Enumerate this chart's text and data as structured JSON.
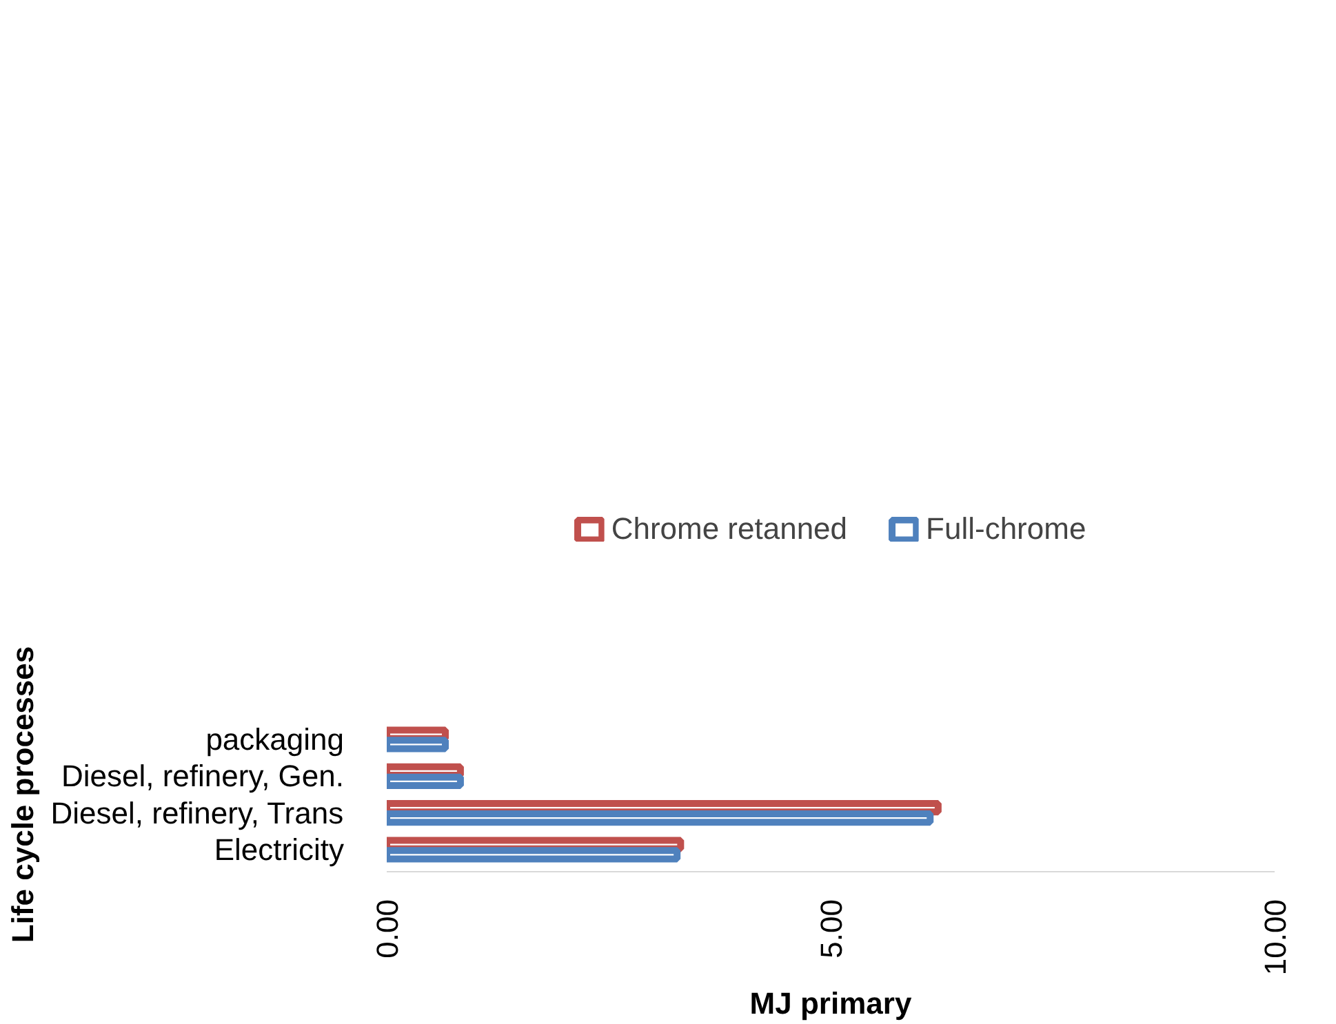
{
  "chart_data": {
    "type": "bar",
    "orientation": "horizontal",
    "xlabel": "MJ primary",
    "ylabel": "Life cycle processes",
    "categories": [
      "packaging",
      "Diesel, refinery, Gen.",
      "Diesel, refinery, Trans",
      "Electricity"
    ],
    "series": [
      {
        "name": "Chrome retanned",
        "color": "#c0504d",
        "values": [
          0.66,
          0.83,
          6.21,
          3.31
        ]
      },
      {
        "name": "Full-chrome",
        "color": "#4f81bd",
        "values": [
          0.66,
          0.83,
          6.12,
          3.27
        ]
      }
    ],
    "xlim": [
      0,
      10
    ],
    "xticks": [
      {
        "value": 0,
        "label": "0.00"
      },
      {
        "value": 5,
        "label": "5.00"
      },
      {
        "value": 10,
        "label": "10.00"
      }
    ],
    "grid": false,
    "legend": "top"
  }
}
